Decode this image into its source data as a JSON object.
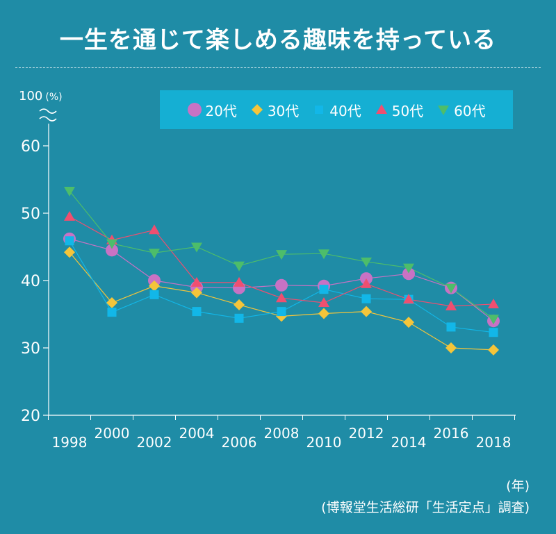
{
  "title": "一生を通じて楽しめる趣味を持っている",
  "unit_top": "100",
  "unit_pct": "(%)",
  "year_unit": "(年)",
  "source": "(博報堂生活総研「生活定点」調査)",
  "colors": {
    "background": "#1f8ca6",
    "legend_bg": "#15afd3",
    "s20": "#c872c4",
    "s30": "#f4c53a",
    "s40": "#12b7e8",
    "s50": "#ef4f70",
    "s60": "#4dbd6a"
  },
  "chart_data": {
    "type": "line",
    "title": "一生を通じて楽しめる趣味を持っている",
    "xlabel": "(年)",
    "ylabel": "(%)",
    "ylim": [
      20,
      60
    ],
    "yticks": [
      20,
      30,
      40,
      50,
      60
    ],
    "y_axis_break_label": "100",
    "x": [
      "1998",
      "2000",
      "2002",
      "2004",
      "2006",
      "2008",
      "2010",
      "2012",
      "2014",
      "2016",
      "2018"
    ],
    "series": [
      {
        "name": "20代",
        "marker": "circle",
        "values": [
          46.2,
          44.5,
          40.0,
          39.0,
          38.9,
          39.3,
          39.2,
          40.3,
          41.0,
          38.9,
          34.0
        ]
      },
      {
        "name": "30代",
        "marker": "diamond",
        "values": [
          44.2,
          36.7,
          39.2,
          38.2,
          36.4,
          34.7,
          35.1,
          35.4,
          33.8,
          30.0,
          29.7
        ]
      },
      {
        "name": "40代",
        "marker": "square",
        "values": [
          45.9,
          35.3,
          37.9,
          35.4,
          34.4,
          35.4,
          38.7,
          37.3,
          37.2,
          33.1,
          32.3
        ]
      },
      {
        "name": "50代",
        "marker": "triangle-up",
        "values": [
          49.5,
          46.0,
          47.5,
          39.7,
          39.7,
          37.4,
          36.7,
          39.5,
          37.2,
          36.2,
          36.5
        ]
      },
      {
        "name": "60代",
        "marker": "triangle-down",
        "values": [
          53.3,
          45.5,
          44.1,
          45.0,
          42.2,
          43.9,
          44.0,
          42.8,
          41.9,
          38.9,
          34.3
        ]
      }
    ]
  }
}
